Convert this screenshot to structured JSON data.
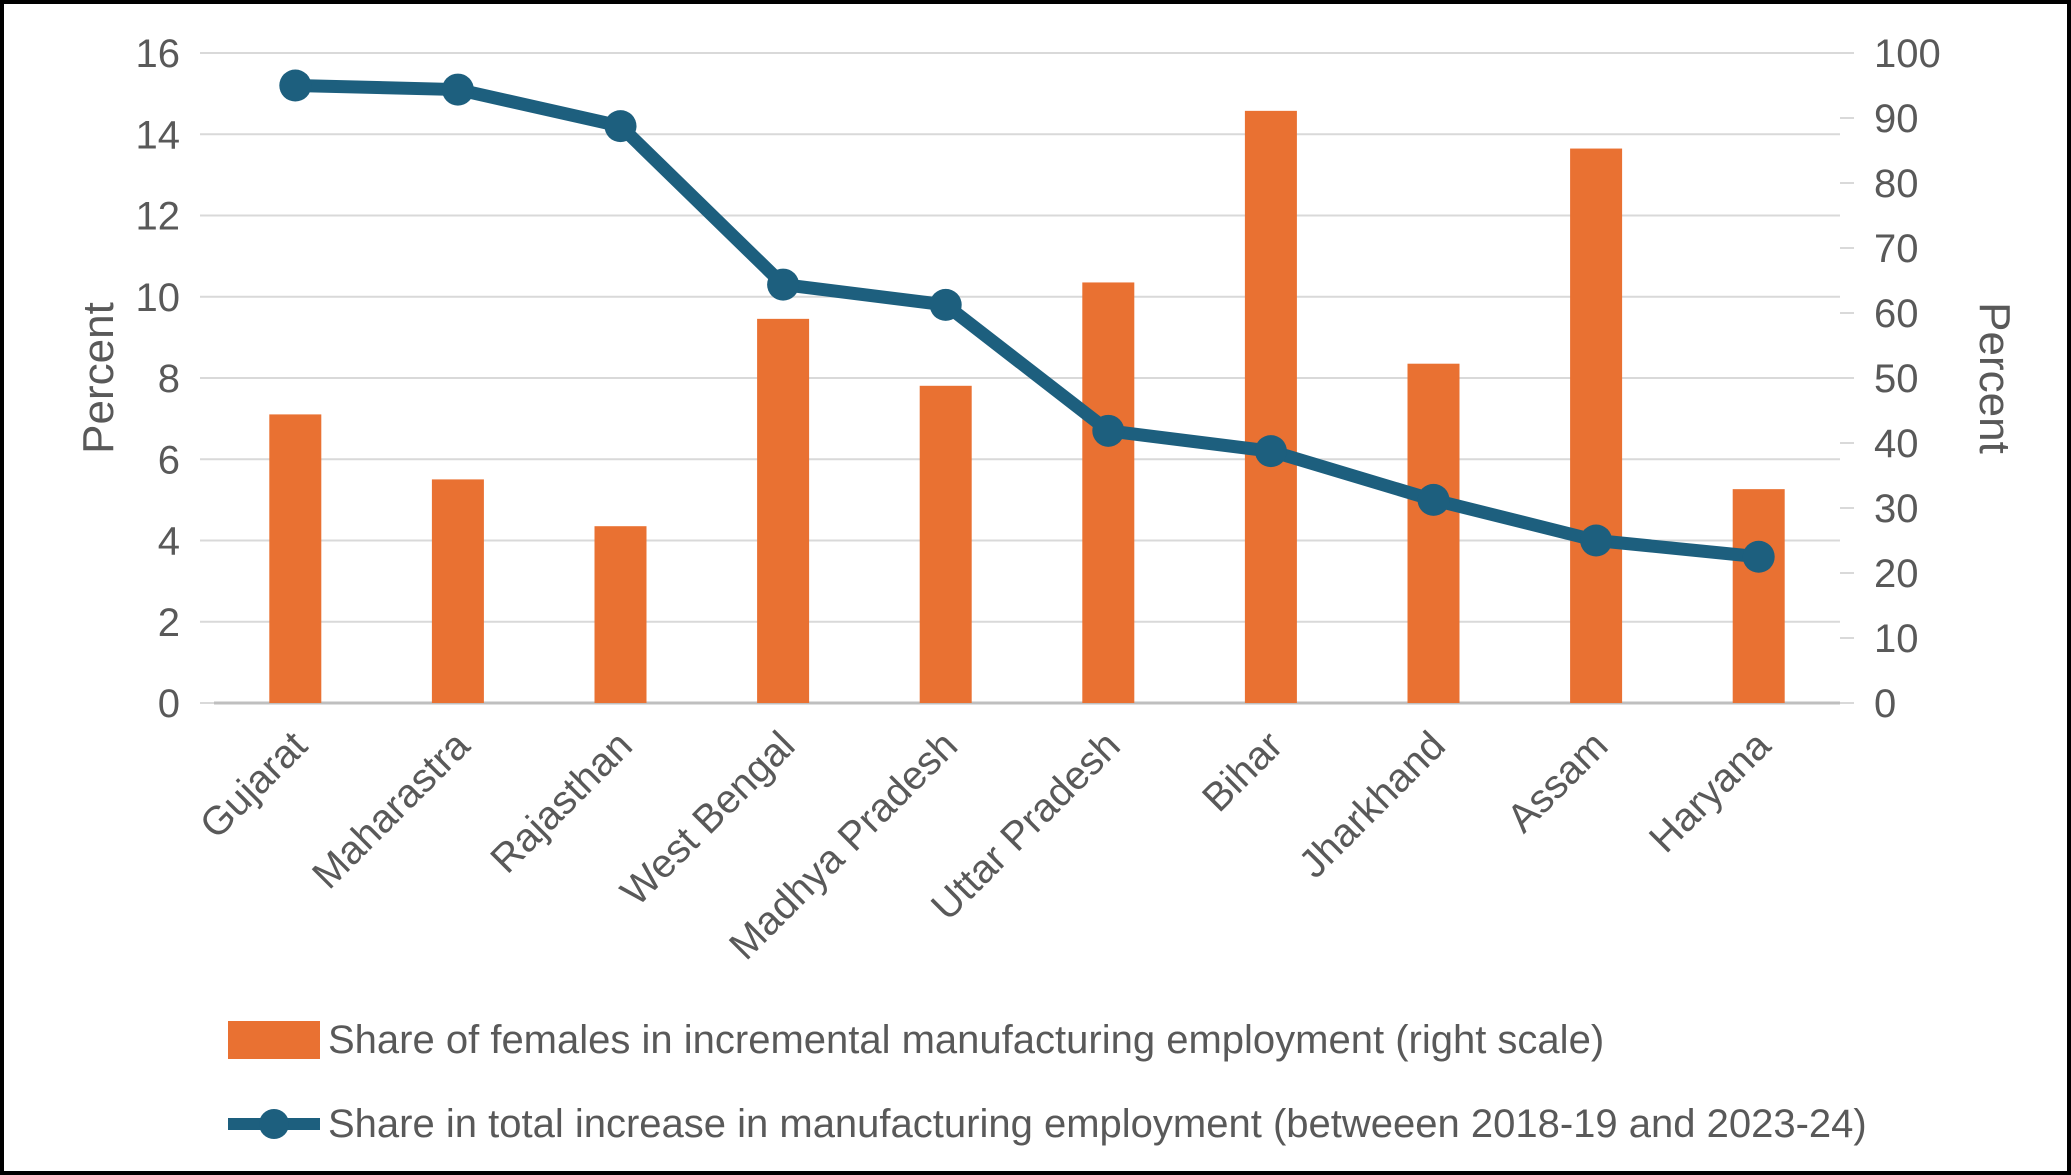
{
  "chart_data": {
    "type": "combo",
    "categories": [
      "Gujarat",
      "Maharastra",
      "Rajasthan",
      "West Bengal",
      "Madhya Pradesh",
      "Uttar Pradesh",
      "Bihar",
      "Jharkhand",
      "Assam",
      "Haryana"
    ],
    "series": [
      {
        "name": "Share of females in incremental manufacturing employment (right scale)",
        "type": "bar",
        "axis": "right",
        "color": "#E97132",
        "values": [
          44.4,
          34.4,
          27.2,
          59.1,
          48.8,
          64.7,
          91.1,
          52.2,
          85.3,
          32.9
        ]
      },
      {
        "name": "Share in total increase in manufacturing employment (betweeen 2018-19 and 2023-24)",
        "type": "line",
        "axis": "left",
        "color": "#1D5F7E",
        "values": [
          15.2,
          15.1,
          14.2,
          10.3,
          9.8,
          6.7,
          6.2,
          5.0,
          4.0,
          3.6
        ]
      }
    ],
    "left_axis": {
      "title": "Percent",
      "min": 0,
      "max": 16,
      "step": 2,
      "ticks": [
        0,
        2,
        4,
        6,
        8,
        10,
        12,
        14,
        16
      ]
    },
    "right_axis": {
      "title": "Percent",
      "min": 0,
      "max": 100,
      "step": 10,
      "ticks": [
        0,
        10,
        20,
        30,
        40,
        50,
        60,
        70,
        80,
        90,
        100
      ]
    },
    "grid": true,
    "legend_position": "bottom"
  },
  "colors": {
    "bar": "#E97132",
    "line": "#1D5F7E",
    "grid": "#D9D9D9",
    "axis_line": "#BFBFBF",
    "text": "#595959",
    "border": "#000000"
  }
}
